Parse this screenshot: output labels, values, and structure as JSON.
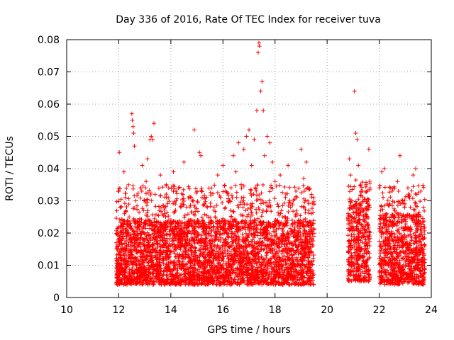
{
  "chart_data": {
    "type": "scatter",
    "title": "Day 336 of 2016, Rate Of TEC Index for receiver tuva",
    "xlabel": "GPS time / hours",
    "ylabel": "ROTI / TECUs",
    "xlim": [
      10,
      24
    ],
    "ylim": [
      0,
      0.08
    ],
    "xticks": [
      10,
      12,
      14,
      16,
      18,
      20,
      22,
      24
    ],
    "xtick_labels": [
      "10",
      "12",
      "14",
      "16",
      "18",
      "20",
      "22",
      "24"
    ],
    "yticks": [
      0,
      0.01,
      0.02,
      0.03,
      0.04,
      0.05,
      0.06,
      0.07,
      0.08
    ],
    "ytick_labels": [
      "0",
      "0.01",
      "0.02",
      "0.03",
      "0.04",
      "0.05",
      "0.06",
      "0.07",
      "0.08"
    ],
    "grid": true,
    "marker": "+",
    "color": "#ff0000",
    "series": [
      {
        "points": [
          [
            11.9,
            0.012
          ],
          [
            11.92,
            0.006
          ],
          [
            11.95,
            0.004
          ],
          [
            11.97,
            0.018
          ],
          [
            12.0,
            0.033
          ],
          [
            12.02,
            0.045
          ],
          [
            12.05,
            0.028
          ],
          [
            12.08,
            0.014
          ],
          [
            12.1,
            0.009
          ],
          [
            12.15,
            0.022
          ],
          [
            12.2,
            0.039
          ],
          [
            12.25,
            0.031
          ],
          [
            12.3,
            0.016
          ],
          [
            12.35,
            0.011
          ],
          [
            12.4,
            0.025
          ],
          [
            12.45,
            0.018
          ],
          [
            12.5,
            0.057
          ],
          [
            12.52,
            0.055
          ],
          [
            12.55,
            0.053
          ],
          [
            12.57,
            0.051
          ],
          [
            12.6,
            0.047
          ],
          [
            12.65,
            0.03
          ],
          [
            12.7,
            0.012
          ],
          [
            12.75,
            0.008
          ],
          [
            12.8,
            0.021
          ],
          [
            12.85,
            0.034
          ],
          [
            12.9,
            0.041
          ],
          [
            12.95,
            0.027
          ],
          [
            13.0,
            0.015
          ],
          [
            13.05,
            0.036
          ],
          [
            13.1,
            0.043
          ],
          [
            13.15,
            0.024
          ],
          [
            13.2,
            0.049
          ],
          [
            13.25,
            0.05
          ],
          [
            13.3,
            0.049
          ],
          [
            13.35,
            0.054
          ],
          [
            13.4,
            0.032
          ],
          [
            13.45,
            0.019
          ],
          [
            13.5,
            0.011
          ],
          [
            13.55,
            0.027
          ],
          [
            13.6,
            0.038
          ],
          [
            13.7,
            0.022
          ],
          [
            13.8,
            0.014
          ],
          [
            13.9,
            0.031
          ],
          [
            14.0,
            0.024
          ],
          [
            14.1,
            0.039
          ],
          [
            14.2,
            0.033
          ],
          [
            14.3,
            0.018
          ],
          [
            14.4,
            0.009
          ],
          [
            14.5,
            0.042
          ],
          [
            14.6,
            0.028
          ],
          [
            14.7,
            0.015
          ],
          [
            14.8,
            0.024
          ],
          [
            14.9,
            0.052
          ],
          [
            15.0,
            0.019
          ],
          [
            15.1,
            0.045
          ],
          [
            15.15,
            0.044
          ],
          [
            15.2,
            0.031
          ],
          [
            15.3,
            0.022
          ],
          [
            15.4,
            0.028
          ],
          [
            15.5,
            0.013
          ],
          [
            15.6,
            0.008
          ],
          [
            15.7,
            0.025
          ],
          [
            15.8,
            0.038
          ],
          [
            15.9,
            0.021
          ],
          [
            16.0,
            0.041
          ],
          [
            16.1,
            0.033
          ],
          [
            16.2,
            0.017
          ],
          [
            16.3,
            0.027
          ],
          [
            16.4,
            0.044
          ],
          [
            16.5,
            0.039
          ],
          [
            16.6,
            0.048
          ],
          [
            16.7,
            0.035
          ],
          [
            16.8,
            0.046
          ],
          [
            16.9,
            0.05
          ],
          [
            17.0,
            0.052
          ],
          [
            17.1,
            0.041
          ],
          [
            17.2,
            0.049
          ],
          [
            17.3,
            0.058
          ],
          [
            17.35,
            0.076
          ],
          [
            17.38,
            0.079
          ],
          [
            17.4,
            0.078
          ],
          [
            17.45,
            0.064
          ],
          [
            17.5,
            0.067
          ],
          [
            17.55,
            0.058
          ],
          [
            17.6,
            0.044
          ],
          [
            17.7,
            0.05
          ],
          [
            17.8,
            0.048
          ],
          [
            17.9,
            0.042
          ],
          [
            18.0,
            0.036
          ],
          [
            18.1,
            0.029
          ],
          [
            18.2,
            0.038
          ],
          [
            18.3,
            0.025
          ],
          [
            18.4,
            0.031
          ],
          [
            18.5,
            0.041
          ],
          [
            18.6,
            0.028
          ],
          [
            18.7,
            0.019
          ],
          [
            18.8,
            0.033
          ],
          [
            18.9,
            0.024
          ],
          [
            19.0,
            0.046
          ],
          [
            19.1,
            0.037
          ],
          [
            19.2,
            0.042
          ],
          [
            19.3,
            0.027
          ],
          [
            19.4,
            0.032
          ],
          [
            19.5,
            0.021
          ],
          [
            20.8,
            0.025
          ],
          [
            20.85,
            0.043
          ],
          [
            20.9,
            0.038
          ],
          [
            20.95,
            0.03
          ],
          [
            21.0,
            0.022
          ],
          [
            21.05,
            0.064
          ],
          [
            21.1,
            0.051
          ],
          [
            21.15,
            0.049
          ],
          [
            21.2,
            0.041
          ],
          [
            21.3,
            0.033
          ],
          [
            21.4,
            0.027
          ],
          [
            21.5,
            0.035
          ],
          [
            21.6,
            0.046
          ],
          [
            21.65,
            0.034
          ],
          [
            22.0,
            0.034
          ],
          [
            22.05,
            0.027
          ],
          [
            22.1,
            0.039
          ],
          [
            22.15,
            0.031
          ],
          [
            22.2,
            0.04
          ],
          [
            22.3,
            0.029
          ],
          [
            22.4,
            0.02
          ],
          [
            22.5,
            0.033
          ],
          [
            22.6,
            0.025
          ],
          [
            22.7,
            0.036
          ],
          [
            22.8,
            0.044
          ],
          [
            22.9,
            0.03
          ],
          [
            23.0,
            0.022
          ],
          [
            23.1,
            0.034
          ],
          [
            23.2,
            0.028
          ],
          [
            23.3,
            0.038
          ],
          [
            23.4,
            0.04
          ],
          [
            23.5,
            0.024
          ],
          [
            23.6,
            0.033
          ],
          [
            23.7,
            0.028
          ],
          [
            23.75,
            0.016
          ]
        ]
      }
    ],
    "dense_segments": [
      {
        "x": [
          11.9,
          19.5
        ],
        "y_core": [
          0.004,
          0.024
        ],
        "y_cap": 0.035
      },
      {
        "x": [
          20.8,
          21.65
        ],
        "y_core": [
          0.005,
          0.03
        ],
        "y_cap": 0.037
      },
      {
        "x": [
          22.0,
          23.75
        ],
        "y_core": [
          0.004,
          0.026
        ],
        "y_cap": 0.035
      }
    ]
  }
}
